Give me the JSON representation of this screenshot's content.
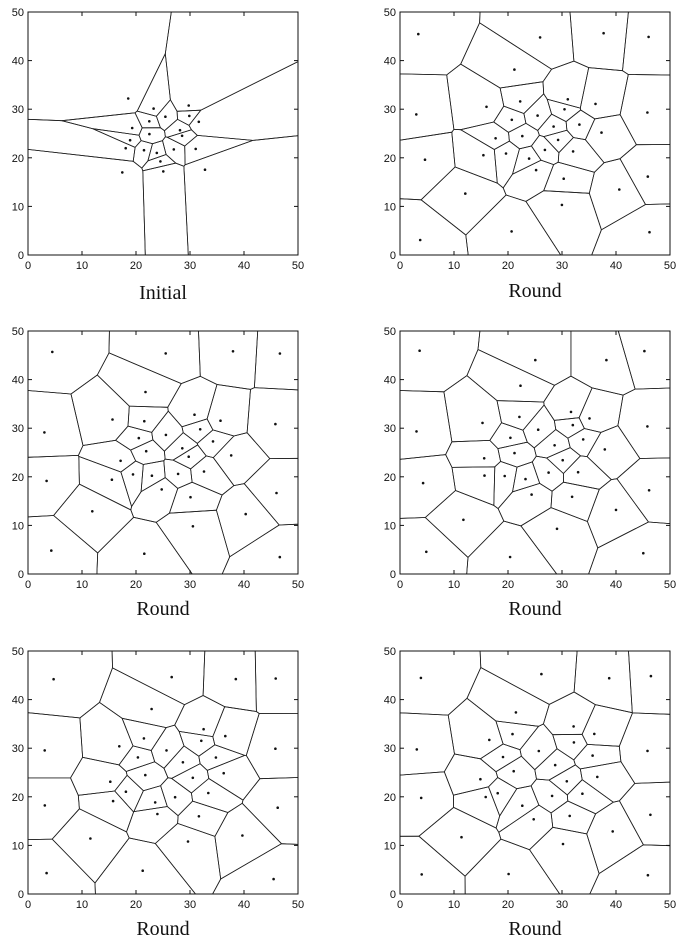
{
  "figure": {
    "panels": [
      {
        "caption": "Initial",
        "xticks": [
          "0",
          "10",
          "20",
          "30",
          "40",
          "50"
        ],
        "yticks": [
          "0",
          "10",
          "20",
          "30",
          "40",
          "50"
        ],
        "xlim": [
          0,
          50
        ],
        "ylim": [
          0,
          50
        ]
      },
      {
        "caption": "Round",
        "xticks": [
          "0",
          "10",
          "20",
          "30",
          "40",
          "50"
        ],
        "yticks": [
          "0",
          "10",
          "20",
          "30",
          "40",
          "50"
        ],
        "xlim": [
          0,
          50
        ],
        "ylim": [
          0,
          50
        ]
      },
      {
        "caption": "Round",
        "xticks": [
          "0",
          "10",
          "20",
          "30",
          "40",
          "50"
        ],
        "yticks": [
          "0",
          "10",
          "20",
          "30",
          "40",
          "50"
        ],
        "xlim": [
          0,
          50
        ],
        "ylim": [
          0,
          50
        ]
      },
      {
        "caption": "Round",
        "xticks": [
          "0",
          "10",
          "20",
          "30",
          "40",
          "50"
        ],
        "yticks": [
          "0",
          "10",
          "20",
          "30",
          "40",
          "50"
        ],
        "xlim": [
          0,
          50
        ],
        "ylim": [
          0,
          50
        ]
      },
      {
        "caption": "Round",
        "xticks": [
          "0",
          "10",
          "20",
          "30",
          "40",
          "50"
        ],
        "yticks": [
          "0",
          "10",
          "20",
          "30",
          "40",
          "50"
        ],
        "xlim": [
          0,
          50
        ],
        "ylim": [
          0,
          50
        ]
      },
      {
        "caption": "Round",
        "xticks": [
          "0",
          "10",
          "20",
          "30",
          "40",
          "50"
        ],
        "yticks": [
          "0",
          "10",
          "20",
          "30",
          "40",
          "50"
        ],
        "xlim": [
          0,
          50
        ],
        "ylim": [
          0,
          50
        ]
      }
    ],
    "colors": {
      "line": "#222222",
      "frame": "#111111",
      "dot": "#111111"
    }
  }
}
